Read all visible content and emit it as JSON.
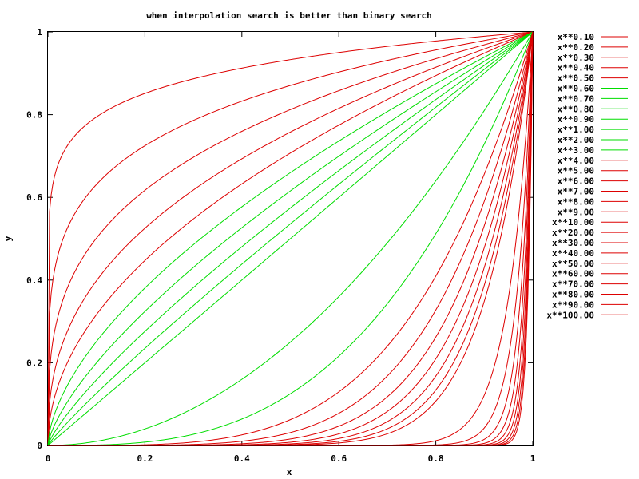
{
  "chart_data": {
    "type": "line",
    "title": "when interpolation search is better than binary search",
    "xlabel": "x",
    "ylabel": "y",
    "xlim": [
      0,
      1
    ],
    "ylim": [
      0,
      1
    ],
    "x_ticks": [
      "0",
      "0.2",
      "0.4",
      "0.6",
      "0.8",
      "1"
    ],
    "y_ticks": [
      "0",
      "0.2",
      "0.4",
      "0.6",
      "0.8",
      "1"
    ],
    "grid": false,
    "legend_position": "right",
    "function": "y = x**exponent",
    "colors": {
      "better": "#00dd00",
      "worse": "#dd0000",
      "axis": "#000000"
    },
    "series": [
      {
        "name": "x**0.10",
        "exponent": 0.1,
        "color": "#dd0000"
      },
      {
        "name": "x**0.20",
        "exponent": 0.2,
        "color": "#dd0000"
      },
      {
        "name": "x**0.30",
        "exponent": 0.3,
        "color": "#dd0000"
      },
      {
        "name": "x**0.40",
        "exponent": 0.4,
        "color": "#dd0000"
      },
      {
        "name": "x**0.50",
        "exponent": 0.5,
        "color": "#dd0000"
      },
      {
        "name": "x**0.60",
        "exponent": 0.6,
        "color": "#00dd00"
      },
      {
        "name": "x**0.70",
        "exponent": 0.7,
        "color": "#00dd00"
      },
      {
        "name": "x**0.80",
        "exponent": 0.8,
        "color": "#00dd00"
      },
      {
        "name": "x**0.90",
        "exponent": 0.9,
        "color": "#00dd00"
      },
      {
        "name": "x**1.00",
        "exponent": 1.0,
        "color": "#00dd00"
      },
      {
        "name": "x**2.00",
        "exponent": 2.0,
        "color": "#00dd00"
      },
      {
        "name": "x**3.00",
        "exponent": 3.0,
        "color": "#00dd00"
      },
      {
        "name": "x**4.00",
        "exponent": 4.0,
        "color": "#dd0000"
      },
      {
        "name": "x**5.00",
        "exponent": 5.0,
        "color": "#dd0000"
      },
      {
        "name": "x**6.00",
        "exponent": 6.0,
        "color": "#dd0000"
      },
      {
        "name": "x**7.00",
        "exponent": 7.0,
        "color": "#dd0000"
      },
      {
        "name": "x**8.00",
        "exponent": 8.0,
        "color": "#dd0000"
      },
      {
        "name": "x**9.00",
        "exponent": 9.0,
        "color": "#dd0000"
      },
      {
        "name": "x**10.00",
        "exponent": 10.0,
        "color": "#dd0000"
      },
      {
        "name": "x**20.00",
        "exponent": 20.0,
        "color": "#dd0000"
      },
      {
        "name": "x**30.00",
        "exponent": 30.0,
        "color": "#dd0000"
      },
      {
        "name": "x**40.00",
        "exponent": 40.0,
        "color": "#dd0000"
      },
      {
        "name": "x**50.00",
        "exponent": 50.0,
        "color": "#dd0000"
      },
      {
        "name": "x**60.00",
        "exponent": 60.0,
        "color": "#dd0000"
      },
      {
        "name": "x**70.00",
        "exponent": 70.0,
        "color": "#dd0000"
      },
      {
        "name": "x**80.00",
        "exponent": 80.0,
        "color": "#dd0000"
      },
      {
        "name": "x**90.00",
        "exponent": 90.0,
        "color": "#dd0000"
      },
      {
        "name": "x**100.00",
        "exponent": 100.0,
        "color": "#dd0000"
      }
    ]
  }
}
